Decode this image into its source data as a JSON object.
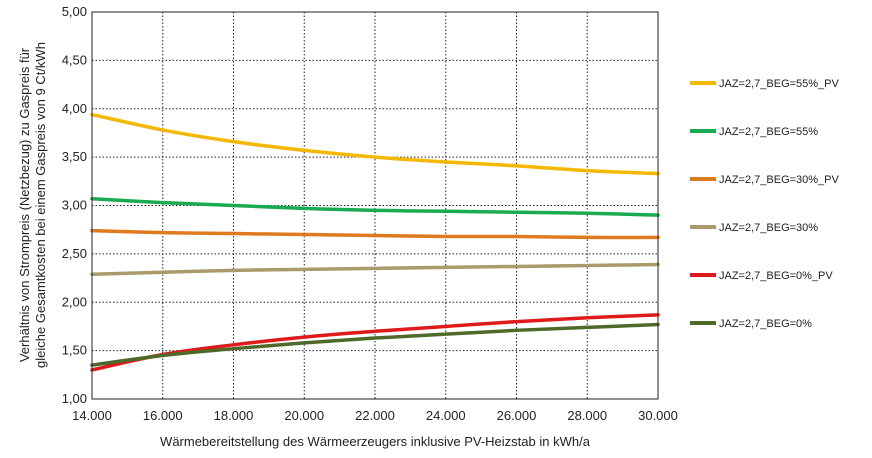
{
  "chart_data": {
    "type": "line",
    "xlabel": "Wärmebereitstellung des Wärmeerzeugers inklusive PV-Heizstab in kWh/a",
    "ylabel_line1": "Verhältnis von Strompreis (Netzbezug) zu Gaspreis für",
    "ylabel_line2": "gleiche Gesamtkosten bei einem Gaspreis von 9 Ct/kWh",
    "xlim": [
      14000,
      30000
    ],
    "ylim": [
      1.0,
      5.0
    ],
    "x_ticks": [
      14000,
      16000,
      18000,
      20000,
      22000,
      24000,
      26000,
      28000,
      30000
    ],
    "x_tick_labels": [
      "14.000",
      "16.000",
      "18.000",
      "20.000",
      "22.000",
      "24.000",
      "26.000",
      "28.000",
      "30.000"
    ],
    "y_ticks": [
      1.0,
      1.5,
      2.0,
      2.5,
      3.0,
      3.5,
      4.0,
      4.5,
      5.0
    ],
    "y_tick_labels": [
      "1,00",
      "1,50",
      "2,00",
      "2,50",
      "3,00",
      "3,50",
      "4,00",
      "4,50",
      "5,00"
    ],
    "grid": true,
    "legend_position": "right",
    "x": [
      14000,
      16000,
      18000,
      20000,
      22000,
      24000,
      26000,
      28000,
      30000
    ],
    "series": [
      {
        "name": "JAZ=2,7_BEG=55%_PV",
        "color": "#f5b800",
        "values": [
          3.94,
          3.78,
          3.66,
          3.57,
          3.5,
          3.45,
          3.41,
          3.36,
          3.33
        ]
      },
      {
        "name": "JAZ=2,7_BEG=55%",
        "color": "#1aaa50",
        "values": [
          3.07,
          3.03,
          3.0,
          2.97,
          2.95,
          2.94,
          2.93,
          2.92,
          2.9
        ]
      },
      {
        "name": "JAZ=2,7_BEG=30%_PV",
        "color": "#e07a1e",
        "values": [
          2.74,
          2.72,
          2.71,
          2.7,
          2.69,
          2.68,
          2.68,
          2.67,
          2.67
        ]
      },
      {
        "name": "JAZ=2,7_BEG=30%",
        "color": "#a89a6a",
        "values": [
          2.29,
          2.31,
          2.33,
          2.34,
          2.35,
          2.36,
          2.37,
          2.38,
          2.39
        ]
      },
      {
        "name": "JAZ=2,7_BEG=0%_PV",
        "color": "#e01a1a",
        "values": [
          1.3,
          1.46,
          1.56,
          1.64,
          1.7,
          1.75,
          1.8,
          1.84,
          1.87
        ]
      },
      {
        "name": "JAZ=2,7_BEG=0%",
        "color": "#4e6a28",
        "values": [
          1.35,
          1.45,
          1.52,
          1.58,
          1.63,
          1.67,
          1.71,
          1.74,
          1.77
        ]
      }
    ]
  }
}
